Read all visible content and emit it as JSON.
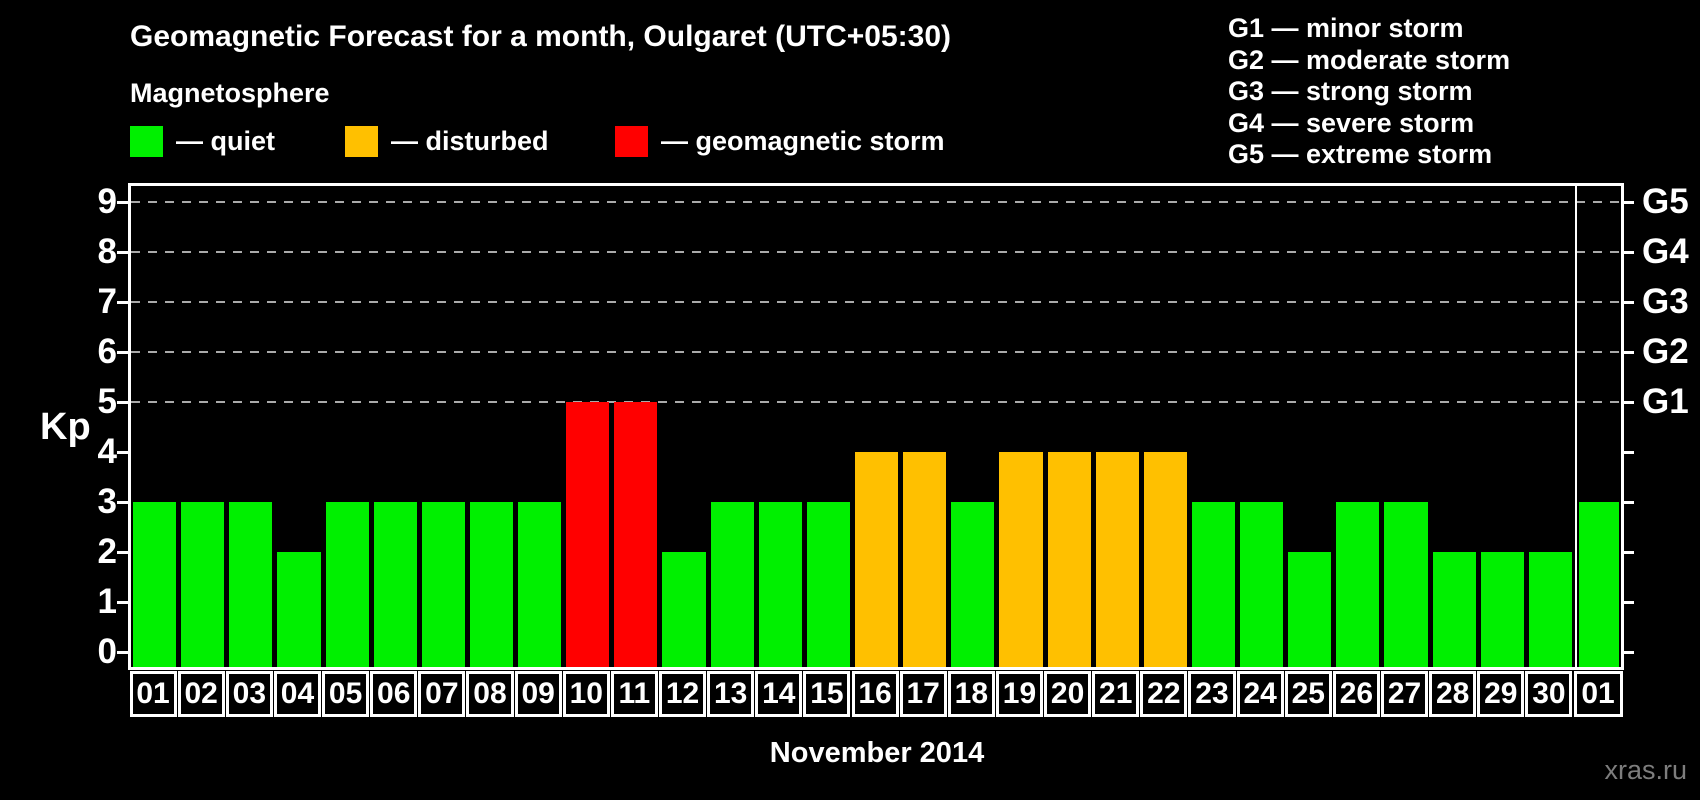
{
  "title": "Geomagnetic Forecast for a month, Oulgaret (UTC+05:30)",
  "legend": {
    "title": "Magnetosphere",
    "items": [
      {
        "status": "quiet",
        "label": "— quiet",
        "color": "#00f000"
      },
      {
        "status": "disturbed",
        "label": "— disturbed",
        "color": "#ffc000"
      },
      {
        "status": "storm",
        "label": "— geomagnetic storm",
        "color": "#ff0000"
      }
    ]
  },
  "g_scale_legend": [
    "G1 — minor storm",
    "G2 — moderate storm",
    "G3 — strong storm",
    "G4 — severe storm",
    "G5 — extreme storm"
  ],
  "watermark": "xras.ru",
  "chart_data": {
    "type": "bar",
    "title": "Geomagnetic Forecast for a month, Oulgaret (UTC+05:30)",
    "xlabel": "November 2014",
    "ylabel": "Kp",
    "ylim": [
      0,
      9.4
    ],
    "yticks": [
      0,
      1,
      2,
      3,
      4,
      5,
      6,
      7,
      8,
      9
    ],
    "gridlines_at": [
      5,
      6,
      7,
      8,
      9
    ],
    "grid": "dashed horizontal at storm levels only",
    "legend_position": "top",
    "right_axis_labels": [
      {
        "label": "G1",
        "kp": 5
      },
      {
        "label": "G2",
        "kp": 6
      },
      {
        "label": "G3",
        "kp": 7
      },
      {
        "label": "G4",
        "kp": 8
      },
      {
        "label": "G5",
        "kp": 9
      }
    ],
    "categories": [
      "01",
      "02",
      "03",
      "04",
      "05",
      "06",
      "07",
      "08",
      "09",
      "10",
      "11",
      "12",
      "13",
      "14",
      "15",
      "16",
      "17",
      "18",
      "19",
      "20",
      "21",
      "22",
      "23",
      "24",
      "25",
      "26",
      "27",
      "28",
      "29",
      "30",
      "01"
    ],
    "values": [
      3,
      3,
      3,
      2,
      3,
      3,
      3,
      3,
      3,
      5,
      5,
      2,
      3,
      3,
      3,
      4,
      4,
      3,
      4,
      4,
      4,
      4,
      3,
      3,
      2,
      3,
      3,
      2,
      2,
      2,
      3
    ],
    "statuses": [
      "quiet",
      "quiet",
      "quiet",
      "quiet",
      "quiet",
      "quiet",
      "quiet",
      "quiet",
      "quiet",
      "storm",
      "storm",
      "quiet",
      "quiet",
      "quiet",
      "quiet",
      "disturbed",
      "disturbed",
      "quiet",
      "disturbed",
      "disturbed",
      "disturbed",
      "disturbed",
      "quiet",
      "quiet",
      "quiet",
      "quiet",
      "quiet",
      "quiet",
      "quiet",
      "quiet",
      "quiet"
    ],
    "month_boundary_after_index": 29,
    "status_colors": {
      "quiet": "#00f000",
      "disturbed": "#ffc000",
      "storm": "#ff0000"
    },
    "gridline_color": "#aaaaaa",
    "axis_color": "#ffffff"
  }
}
